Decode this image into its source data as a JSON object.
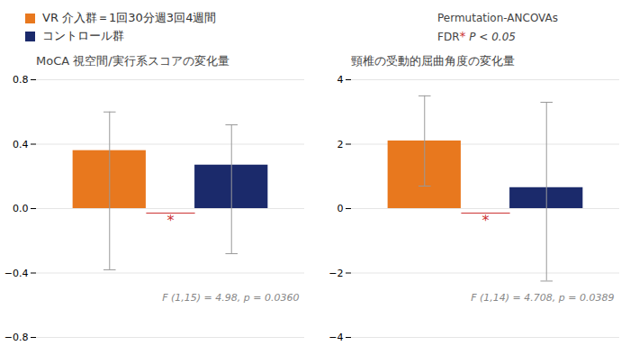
{
  "chart_data": [
    {
      "type": "bar",
      "title": "MoCA 視空間/実行系スコアの変化量",
      "categories": [
        null
      ],
      "series": [
        {
          "name": "VR 介入群＝1回30分週3回4週間",
          "color": "#E8781E",
          "values": [
            0.36
          ],
          "error_lower": [
            -0.38
          ],
          "error_upper": [
            0.6
          ]
        },
        {
          "name": "コントロール群",
          "color": "#1B2A6B",
          "values": [
            0.27
          ],
          "error_lower": [
            -0.28
          ],
          "error_upper": [
            0.52
          ]
        }
      ],
      "ylim": [
        -0.8,
        0.8
      ],
      "yticks": [
        -0.8,
        -0.4,
        {
          "value": 0,
          "label": "0.0"
        },
        0.4,
        0.8
      ],
      "grid": true,
      "legend": "upper left",
      "annotations": [
        {
          "text": "*",
          "color": "#CC3333"
        },
        {
          "text": "F (1,15) = 4.98, p = 0.0360"
        }
      ]
    },
    {
      "type": "bar",
      "title": "頸椎の受動的屈曲角度の変化量",
      "categories": [
        null
      ],
      "series": [
        {
          "name": "VR 介入群＝1回30分週3回4週間",
          "color": "#E8781E",
          "values": [
            2.1
          ],
          "error_lower": [
            0.7
          ],
          "error_upper": [
            3.5
          ]
        },
        {
          "name": "コントロール群",
          "color": "#1B2A6B",
          "values": [
            0.65
          ],
          "error_lower": [
            -2.25
          ],
          "error_upper": [
            3.3
          ]
        }
      ],
      "ylim": [
        -4,
        4
      ],
      "yticks": [
        -4,
        -2,
        0,
        2,
        4
      ],
      "grid": true,
      "annotations": [
        {
          "text": "*",
          "color": "#CC3333"
        },
        {
          "text": "F (1,14) = 4.708, p = 0.0389"
        }
      ]
    }
  ],
  "annotations": [
    {
      "text": "Permutation-ANCOVAs"
    },
    {
      "text": "FDR"
    },
    {
      "text": "*",
      "color": "#CC3333"
    },
    {
      "text": " P < 0.05"
    }
  ]
}
